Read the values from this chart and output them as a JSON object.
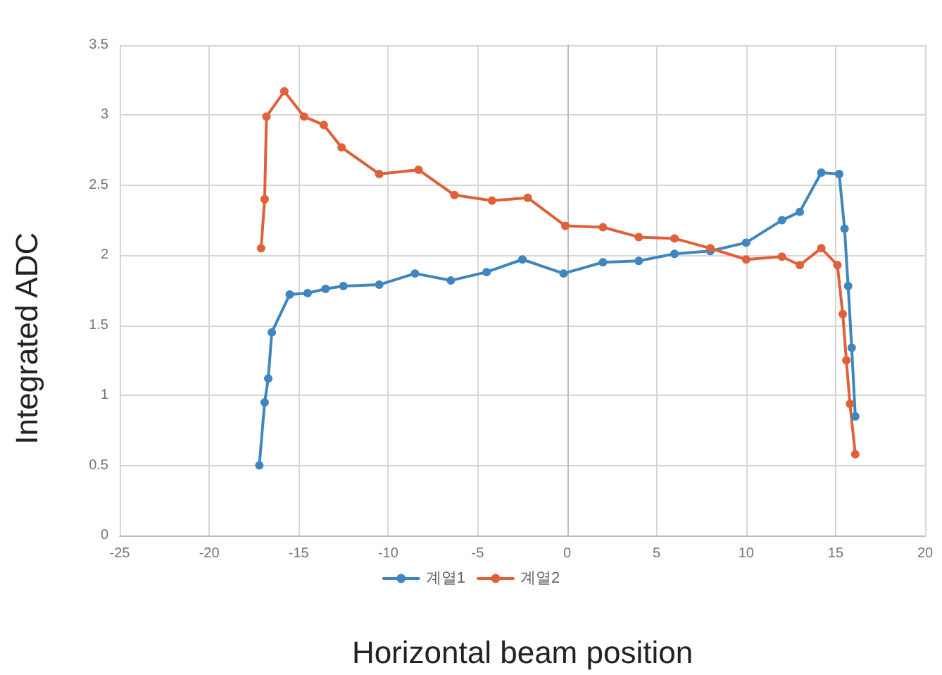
{
  "chart_data": {
    "type": "line",
    "xlabel": "Horizontal beam position",
    "ylabel": "Integrated ADC",
    "xlim": [
      -25,
      20
    ],
    "xticks": [
      -25,
      -20,
      -15,
      -10,
      -5,
      0,
      5,
      10,
      15,
      20
    ],
    "ylim": [
      0,
      3.5
    ],
    "yticks": [
      0,
      0.5,
      1,
      1.5,
      2,
      2.5,
      3,
      3.5
    ],
    "grid": true,
    "legend": "bottom",
    "marker": "circle",
    "line_style": "solid",
    "series": [
      {
        "name": "계열1",
        "color": "#3f86c0",
        "x": [
          -17.2,
          -16.9,
          -16.7,
          -16.5,
          -15.5,
          -14.5,
          -13.5,
          -12.5,
          -10.5,
          -8.5,
          -6.5,
          -4.5,
          -2.5,
          -0.2,
          2,
          4,
          6,
          8,
          10,
          12,
          13,
          14.2,
          15.2,
          15.5,
          15.7,
          15.9,
          16.1
        ],
        "values": [
          0.5,
          0.95,
          1.12,
          1.45,
          1.72,
          1.73,
          1.76,
          1.78,
          1.79,
          1.87,
          1.82,
          1.88,
          1.97,
          1.87,
          1.95,
          1.96,
          2.01,
          2.03,
          2.09,
          2.25,
          2.31,
          2.59,
          2.58,
          2.19,
          1.78,
          1.34,
          0.85
        ]
      },
      {
        "name": "계열2",
        "color": "#e0603a",
        "x": [
          -17.1,
          -16.9,
          -16.8,
          -15.8,
          -14.7,
          -13.6,
          -12.6,
          -10.5,
          -8.3,
          -6.3,
          -4.2,
          -2.2,
          -0.1,
          2,
          4,
          6,
          8,
          10,
          12,
          13,
          14.2,
          15.1,
          15.4,
          15.6,
          15.8,
          16.1
        ],
        "values": [
          2.05,
          2.4,
          2.99,
          3.17,
          2.99,
          2.93,
          2.77,
          2.58,
          2.61,
          2.43,
          2.39,
          2.41,
          2.21,
          2.2,
          2.13,
          2.12,
          2.05,
          1.97,
          1.99,
          1.93,
          2.05,
          1.93,
          1.58,
          1.25,
          0.94,
          0.58
        ]
      }
    ]
  }
}
